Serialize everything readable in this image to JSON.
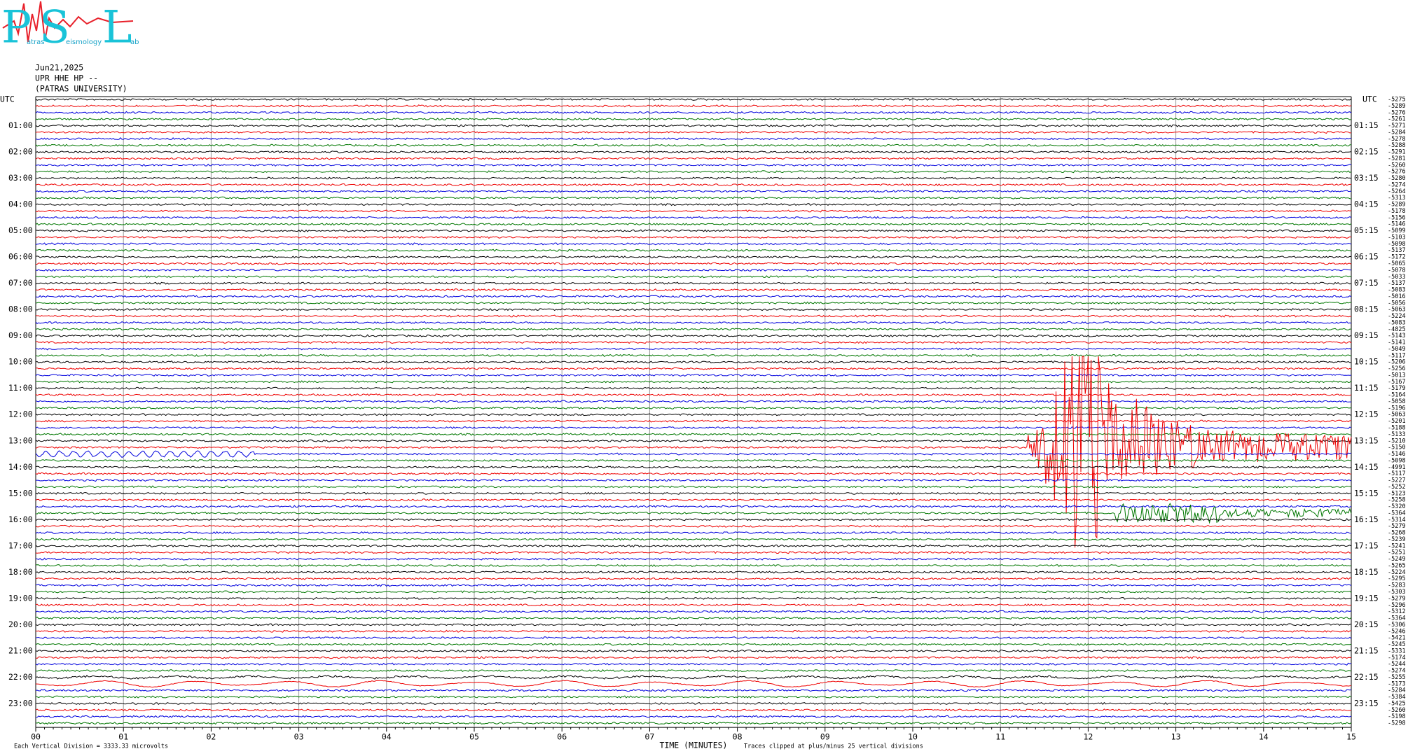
{
  "logo": {
    "letters": [
      "P",
      "S",
      "L"
    ],
    "words": [
      "atras",
      "eismology",
      "ab"
    ]
  },
  "header": {
    "date": "Jun21,2025",
    "station": "UPR HHE HP --",
    "institution": "(PATRAS UNIVERSITY)"
  },
  "left_axis": {
    "title": "UTC",
    "labels": [
      "01:00",
      "02:00",
      "03:00",
      "04:00",
      "05:00",
      "06:00",
      "07:00",
      "08:00",
      "09:00",
      "10:00",
      "11:00",
      "12:00",
      "13:00",
      "14:00",
      "15:00",
      "16:00",
      "17:00",
      "18:00",
      "19:00",
      "20:00",
      "21:00",
      "22:00",
      "23:00"
    ]
  },
  "right_axis": {
    "title": "UTC",
    "labels": [
      "01:15",
      "02:15",
      "03:15",
      "04:15",
      "05:15",
      "06:15",
      "07:15",
      "08:15",
      "09:15",
      "10:15",
      "11:15",
      "12:15",
      "13:15",
      "14:15",
      "15:15",
      "16:15",
      "17:15",
      "18:15",
      "19:15",
      "20:15",
      "21:15",
      "22:15",
      "23:15"
    ]
  },
  "trace_offsets": [
    -5275,
    -5289,
    -5276,
    -5261,
    -5271,
    -5284,
    -5278,
    -5288,
    -5291,
    -5281,
    -5260,
    -5276,
    -5280,
    -5274,
    -5264,
    -5313,
    -5289,
    -5178,
    -5156,
    -5146,
    -5099,
    -5103,
    -5098,
    -5137,
    -5172,
    -5065,
    -5078,
    -5033,
    -5137,
    -5083,
    -5016,
    -5056,
    -5063,
    -5224,
    -5083,
    -4825,
    -5143,
    -5141,
    -5049,
    -5117,
    -5206,
    -5256,
    -5013,
    -5167,
    -5179,
    -5164,
    -5058,
    -5196,
    -5063,
    -5201,
    -5188,
    -5133,
    -5210,
    -5150,
    -5146,
    -5098,
    -4991,
    -5117,
    -5227,
    -5252,
    -5123,
    -5258,
    -5320,
    -5364,
    -5314,
    -5279,
    -5268,
    -5239,
    -5241,
    -5251,
    -5249,
    -5265,
    -5224,
    -5295,
    -5283,
    -5303,
    -5279,
    -5296,
    -5312,
    -5364,
    -5306,
    -5246,
    -5421,
    -5245,
    -5331,
    -5174,
    -5244,
    -5274,
    -5255,
    -5173,
    -5284,
    -5384,
    -5425,
    -5260,
    -5198,
    -5298
  ],
  "bottom_axis": {
    "labels": [
      "00",
      "01",
      "02",
      "03",
      "04",
      "05",
      "06",
      "07",
      "08",
      "09",
      "10",
      "11",
      "12",
      "13",
      "14",
      "15"
    ],
    "title": "TIME (MINUTES)"
  },
  "footer": {
    "scale": "Each Vertical Division = 3333.33 microvolts",
    "clip": "Traces clipped at plus/minus 25 vertical divisions"
  }
}
